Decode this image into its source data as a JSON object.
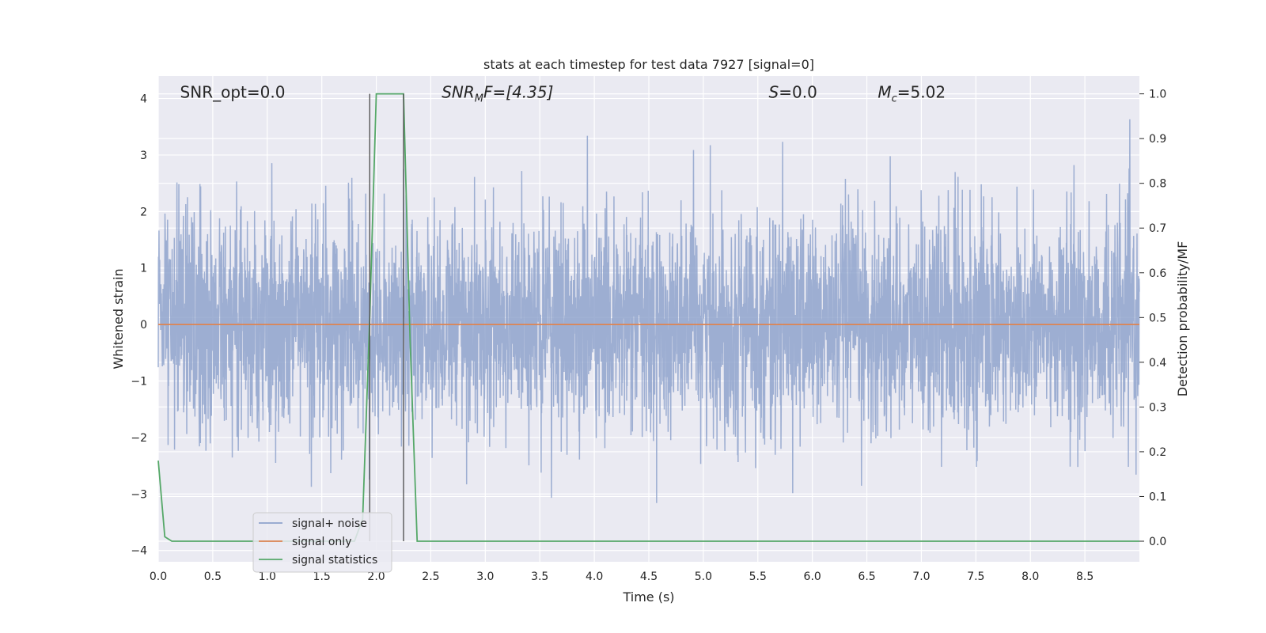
{
  "chart_data": {
    "type": "line",
    "title": "stats at each timestep for test data 7927 [signal=0]",
    "xlabel": "Time (s)",
    "ylabel": "Whitened strain",
    "y2label": "Detection probability/MF",
    "xlim": [
      0.0,
      9.0
    ],
    "ylim": [
      -4.2,
      4.4
    ],
    "y2lim": [
      -0.046,
      1.04
    ],
    "x_ticks": [
      0.0,
      0.5,
      1.0,
      1.5,
      2.0,
      2.5,
      3.0,
      3.5,
      4.0,
      4.5,
      5.0,
      5.5,
      6.0,
      6.5,
      7.0,
      7.5,
      8.0,
      8.5
    ],
    "x_tick_labels": [
      "0.0",
      "0.5",
      "1.0",
      "1.5",
      "2.0",
      "2.5",
      "3.0",
      "3.5",
      "4.0",
      "4.5",
      "5.0",
      "5.5",
      "6.0",
      "6.5",
      "7.0",
      "7.5",
      "8.0",
      "8.5"
    ],
    "y_ticks": [
      -4,
      -3,
      -2,
      -1,
      0,
      1,
      2,
      3,
      4
    ],
    "y_tick_labels": [
      "−4",
      "−3",
      "−2",
      "−1",
      "0",
      "1",
      "2",
      "3",
      "4"
    ],
    "y2_ticks": [
      0.0,
      0.1,
      0.2,
      0.3,
      0.4,
      0.5,
      0.6,
      0.7,
      0.8,
      0.9,
      1.0
    ],
    "y2_tick_labels": [
      "0.0",
      "0.1",
      "0.2",
      "0.3",
      "0.4",
      "0.5",
      "0.6",
      "0.7",
      "0.8",
      "0.9",
      "1.0"
    ],
    "grid": true,
    "legend_position": "lower-left",
    "annotations": [
      {
        "text": "SNR_opt=0.0",
        "x": 0.2,
        "y": 4.1
      },
      {
        "text": "SNR",
        "sub": "M",
        "tail": "F=[4.35]",
        "italic": true,
        "x": 2.6,
        "y": 4.1
      },
      {
        "text": "S",
        "tail": "=0.0",
        "italic": true,
        "x": 5.6,
        "y": 4.1
      },
      {
        "text": "M",
        "sub": "c",
        "tail": "=5.02",
        "italic": true,
        "x": 6.6,
        "y": 4.1
      }
    ],
    "vlines": [
      {
        "x": 1.94,
        "y2_from": 0.0,
        "y2_to": 1.0
      },
      {
        "x": 2.25,
        "y2_from": 0.0,
        "y2_to": 1.0
      }
    ],
    "series": [
      {
        "name": "signal+ noise",
        "color": "#8fa3cc",
        "kind": "noise",
        "axis": "left",
        "std": 0.95,
        "mean": 0.0,
        "n_points": 4096,
        "y_range": [
          -3.9,
          4.0
        ]
      },
      {
        "name": "signal only",
        "color": "#dd8452",
        "kind": "line",
        "axis": "left",
        "x": [
          0.0,
          9.0
        ],
        "y": [
          0.0,
          0.0
        ]
      },
      {
        "name": "signal statistics",
        "color": "#55a868",
        "kind": "line",
        "axis": "right",
        "x": [
          0.0,
          0.06,
          0.125,
          1.8,
          1.875,
          1.94,
          2.0,
          2.25,
          2.31,
          2.375,
          9.0
        ],
        "y": [
          0.18,
          0.01,
          0.0,
          0.0,
          0.05,
          0.5,
          1.0,
          1.0,
          0.45,
          0.0,
          0.0
        ]
      }
    ]
  }
}
